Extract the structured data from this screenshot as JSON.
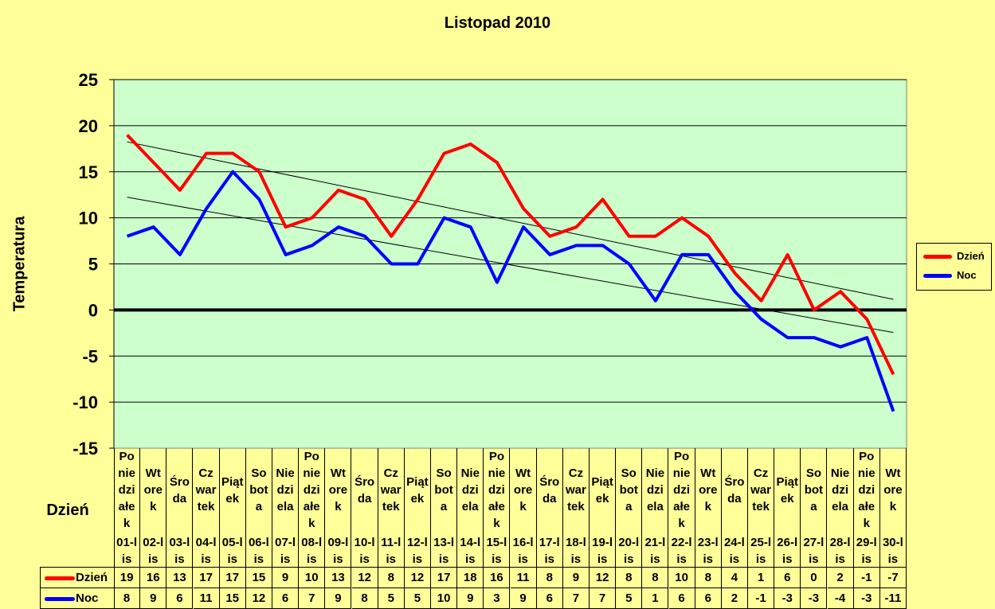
{
  "chart_data": {
    "type": "line",
    "title": "Listopad 2010",
    "xlabel": "Dzień",
    "ylabel": "Temperatura",
    "ylim": [
      -15,
      25
    ],
    "yticks": [
      -15,
      -10,
      -5,
      0,
      5,
      10,
      15,
      20,
      25
    ],
    "grid": true,
    "legend": "right",
    "day_names": [
      "Poniedziałek",
      "Wtorek",
      "Środa",
      "Czwartek",
      "Piątek",
      "Sobota",
      "Niedziela",
      "Poniedziałek",
      "Wtorek",
      "Środa",
      "Czwartek",
      "Piątek",
      "Sobota",
      "Niedziela",
      "Poniedziałek",
      "Wtorek",
      "Środa",
      "Czwartek",
      "Piątek",
      "Sobota",
      "Niedziela",
      "Poniedziałek",
      "Wtorek",
      "Środa",
      "Czwartek",
      "Piątek",
      "Sobota",
      "Niedziela",
      "Poniedziałek",
      "Wtorek"
    ],
    "categories": [
      "01-lis",
      "02-lis",
      "03-lis",
      "04-lis",
      "05-lis",
      "06-lis",
      "07-lis",
      "08-lis",
      "09-lis",
      "10-lis",
      "11-lis",
      "12-lis",
      "13-lis",
      "14-lis",
      "15-lis",
      "16-lis",
      "17-lis",
      "18-lis",
      "19-lis",
      "20-lis",
      "21-lis",
      "22-lis",
      "23-lis",
      "24-lis",
      "25-lis",
      "26-lis",
      "27-lis",
      "28-lis",
      "29-lis",
      "30-lis"
    ],
    "series": [
      {
        "name": "Dzień",
        "color": "#ff0000",
        "values": [
          19,
          16,
          13,
          17,
          17,
          15,
          9,
          10,
          13,
          12,
          8,
          12,
          17,
          18,
          16,
          11,
          8,
          9,
          12,
          8,
          8,
          10,
          8,
          4,
          1,
          6,
          0,
          2,
          -1,
          -7
        ]
      },
      {
        "name": "Noc",
        "color": "#0000ff",
        "values": [
          8,
          9,
          6,
          11,
          15,
          12,
          6,
          7,
          9,
          8,
          5,
          5,
          10,
          9,
          3,
          9,
          6,
          7,
          7,
          5,
          1,
          6,
          6,
          2,
          -1,
          -3,
          -3,
          -4,
          -3,
          -11
        ]
      }
    ],
    "trendlines": "linear",
    "colors": {
      "background": "#ffff99",
      "plot_area": "#ccffcc"
    }
  }
}
